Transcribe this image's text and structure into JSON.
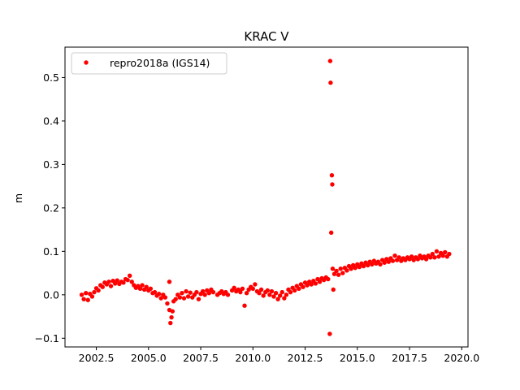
{
  "chart_data": {
    "type": "scatter",
    "title": "KRAC V",
    "xlabel": "",
    "ylabel": "m",
    "xlim": [
      2001.0,
      2020.3
    ],
    "ylim": [
      -0.12,
      0.57
    ],
    "xticks": [
      2002.5,
      2005.0,
      2007.5,
      2010.0,
      2012.5,
      2015.0,
      2017.5,
      2020.0
    ],
    "xtick_labels": [
      "2002.5",
      "2005.0",
      "2007.5",
      "2010.0",
      "2012.5",
      "2015.0",
      "2017.5",
      "2020.0"
    ],
    "yticks": [
      -0.1,
      0.0,
      0.1,
      0.2,
      0.3,
      0.4,
      0.5
    ],
    "ytick_labels": [
      "−0.1",
      "0.0",
      "0.1",
      "0.2",
      "0.3",
      "0.4",
      "0.5"
    ],
    "grid": false,
    "legend_position": "top-left",
    "series": [
      {
        "name": "repro2018a (IGS14)",
        "color": "#ff0000",
        "marker": "circle",
        "points": [
          [
            1.8,
            0.0
          ],
          [
            1.9,
            -0.01
          ],
          [
            2.0,
            0.004
          ],
          [
            2.1,
            -0.012
          ],
          [
            2.2,
            0.002
          ],
          [
            2.3,
            -0.004
          ],
          [
            2.4,
            0.006
          ],
          [
            2.5,
            0.015
          ],
          [
            2.6,
            0.01
          ],
          [
            2.7,
            0.022
          ],
          [
            2.8,
            0.018
          ],
          [
            2.9,
            0.028
          ],
          [
            3.0,
            0.024
          ],
          [
            3.1,
            0.03
          ],
          [
            3.2,
            0.02
          ],
          [
            3.3,
            0.032
          ],
          [
            3.4,
            0.026
          ],
          [
            3.5,
            0.033
          ],
          [
            3.6,
            0.025
          ],
          [
            3.7,
            0.03
          ],
          [
            3.8,
            0.028
          ],
          [
            3.9,
            0.036
          ],
          [
            4.0,
            0.034
          ],
          [
            4.1,
            0.044
          ],
          [
            4.2,
            0.03
          ],
          [
            4.3,
            0.022
          ],
          [
            4.4,
            0.016
          ],
          [
            4.5,
            0.02
          ],
          [
            4.6,
            0.014
          ],
          [
            4.7,
            0.022
          ],
          [
            4.8,
            0.012
          ],
          [
            4.9,
            0.018
          ],
          [
            5.0,
            0.01
          ],
          [
            5.1,
            0.014
          ],
          [
            5.2,
            0.004
          ],
          [
            5.3,
            0.006
          ],
          [
            5.4,
            -0.002
          ],
          [
            5.5,
            0.002
          ],
          [
            5.6,
            -0.008
          ],
          [
            5.7,
            0.0
          ],
          [
            5.8,
            -0.006
          ],
          [
            5.9,
            -0.02
          ],
          [
            6.0,
            -0.035
          ],
          [
            6.05,
            -0.065
          ],
          [
            6.1,
            -0.052
          ],
          [
            6.15,
            -0.038
          ],
          [
            6.2,
            -0.015
          ],
          [
            6.3,
            -0.01
          ],
          [
            6.0,
            0.03
          ],
          [
            6.4,
            0.0
          ],
          [
            6.5,
            -0.006
          ],
          [
            6.6,
            0.004
          ],
          [
            6.7,
            -0.008
          ],
          [
            6.8,
            0.008
          ],
          [
            6.9,
            -0.004
          ],
          [
            7.0,
            0.005
          ],
          [
            7.1,
            -0.006
          ],
          [
            7.2,
            0.0
          ],
          [
            7.3,
            0.006
          ],
          [
            7.4,
            -0.01
          ],
          [
            7.5,
            0.002
          ],
          [
            7.6,
            0.008
          ],
          [
            7.7,
            0.0
          ],
          [
            7.8,
            0.01
          ],
          [
            7.9,
            0.004
          ],
          [
            8.0,
            0.012
          ],
          [
            8.1,
            0.006
          ],
          [
            8.3,
            0.0
          ],
          [
            8.4,
            0.004
          ],
          [
            8.5,
            0.008
          ],
          [
            8.6,
            0.002
          ],
          [
            8.7,
            0.006
          ],
          [
            8.8,
            0.0
          ],
          [
            9.0,
            0.01
          ],
          [
            9.1,
            0.016
          ],
          [
            9.2,
            0.008
          ],
          [
            9.3,
            0.012
          ],
          [
            9.4,
            0.006
          ],
          [
            9.5,
            0.014
          ],
          [
            9.6,
            -0.025
          ],
          [
            9.7,
            0.004
          ],
          [
            9.8,
            0.012
          ],
          [
            9.9,
            0.018
          ],
          [
            10.0,
            0.014
          ],
          [
            10.1,
            0.024
          ],
          [
            10.2,
            0.008
          ],
          [
            10.3,
            0.004
          ],
          [
            10.4,
            0.012
          ],
          [
            10.5,
            -0.002
          ],
          [
            10.6,
            0.006
          ],
          [
            10.7,
            0.01
          ],
          [
            10.8,
            0.0
          ],
          [
            10.9,
            0.008
          ],
          [
            11.0,
            -0.004
          ],
          [
            11.1,
            0.004
          ],
          [
            11.2,
            -0.01
          ],
          [
            11.3,
            -0.002
          ],
          [
            11.4,
            0.006
          ],
          [
            11.5,
            -0.008
          ],
          [
            11.6,
            0.0
          ],
          [
            11.7,
            0.012
          ],
          [
            11.8,
            0.006
          ],
          [
            11.9,
            0.016
          ],
          [
            12.0,
            0.01
          ],
          [
            12.1,
            0.02
          ],
          [
            12.2,
            0.014
          ],
          [
            12.3,
            0.024
          ],
          [
            12.4,
            0.018
          ],
          [
            12.5,
            0.028
          ],
          [
            12.6,
            0.022
          ],
          [
            12.7,
            0.03
          ],
          [
            12.8,
            0.024
          ],
          [
            12.9,
            0.032
          ],
          [
            13.0,
            0.026
          ],
          [
            13.1,
            0.036
          ],
          [
            13.2,
            0.03
          ],
          [
            13.3,
            0.038
          ],
          [
            13.4,
            0.034
          ],
          [
            13.5,
            0.04
          ],
          [
            13.6,
            0.036
          ],
          [
            13.7,
            0.538
          ],
          [
            13.72,
            0.488
          ],
          [
            13.78,
            0.275
          ],
          [
            13.8,
            0.254
          ],
          [
            13.75,
            0.143
          ],
          [
            13.68,
            -0.09
          ],
          [
            13.85,
            0.012
          ],
          [
            13.82,
            0.06
          ],
          [
            13.9,
            0.048
          ],
          [
            14.0,
            0.055
          ],
          [
            14.1,
            0.046
          ],
          [
            14.2,
            0.06
          ],
          [
            14.3,
            0.05
          ],
          [
            14.4,
            0.062
          ],
          [
            14.5,
            0.056
          ],
          [
            14.6,
            0.066
          ],
          [
            14.7,
            0.06
          ],
          [
            14.8,
            0.068
          ],
          [
            14.9,
            0.062
          ],
          [
            15.0,
            0.07
          ],
          [
            15.1,
            0.064
          ],
          [
            15.2,
            0.072
          ],
          [
            15.3,
            0.066
          ],
          [
            15.4,
            0.074
          ],
          [
            15.5,
            0.068
          ],
          [
            15.6,
            0.076
          ],
          [
            15.7,
            0.07
          ],
          [
            15.8,
            0.078
          ],
          [
            15.9,
            0.072
          ],
          [
            16.0,
            0.076
          ],
          [
            16.1,
            0.07
          ],
          [
            16.2,
            0.08
          ],
          [
            16.3,
            0.074
          ],
          [
            16.4,
            0.082
          ],
          [
            16.5,
            0.076
          ],
          [
            16.6,
            0.084
          ],
          [
            16.7,
            0.078
          ],
          [
            16.8,
            0.09
          ],
          [
            16.9,
            0.08
          ],
          [
            17.0,
            0.086
          ],
          [
            17.1,
            0.078
          ],
          [
            17.2,
            0.084
          ],
          [
            17.3,
            0.08
          ],
          [
            17.4,
            0.086
          ],
          [
            17.5,
            0.082
          ],
          [
            17.6,
            0.088
          ],
          [
            17.7,
            0.08
          ],
          [
            17.8,
            0.086
          ],
          [
            17.9,
            0.082
          ],
          [
            18.0,
            0.09
          ],
          [
            18.1,
            0.084
          ],
          [
            18.2,
            0.088
          ],
          [
            18.3,
            0.082
          ],
          [
            18.4,
            0.09
          ],
          [
            18.5,
            0.086
          ],
          [
            18.6,
            0.094
          ],
          [
            18.7,
            0.086
          ],
          [
            18.8,
            0.1
          ],
          [
            18.9,
            0.088
          ],
          [
            19.0,
            0.096
          ],
          [
            19.1,
            0.09
          ],
          [
            19.2,
            0.098
          ],
          [
            19.3,
            0.088
          ],
          [
            19.4,
            0.094
          ]
        ],
        "points_x_offset": 2000
      }
    ]
  }
}
